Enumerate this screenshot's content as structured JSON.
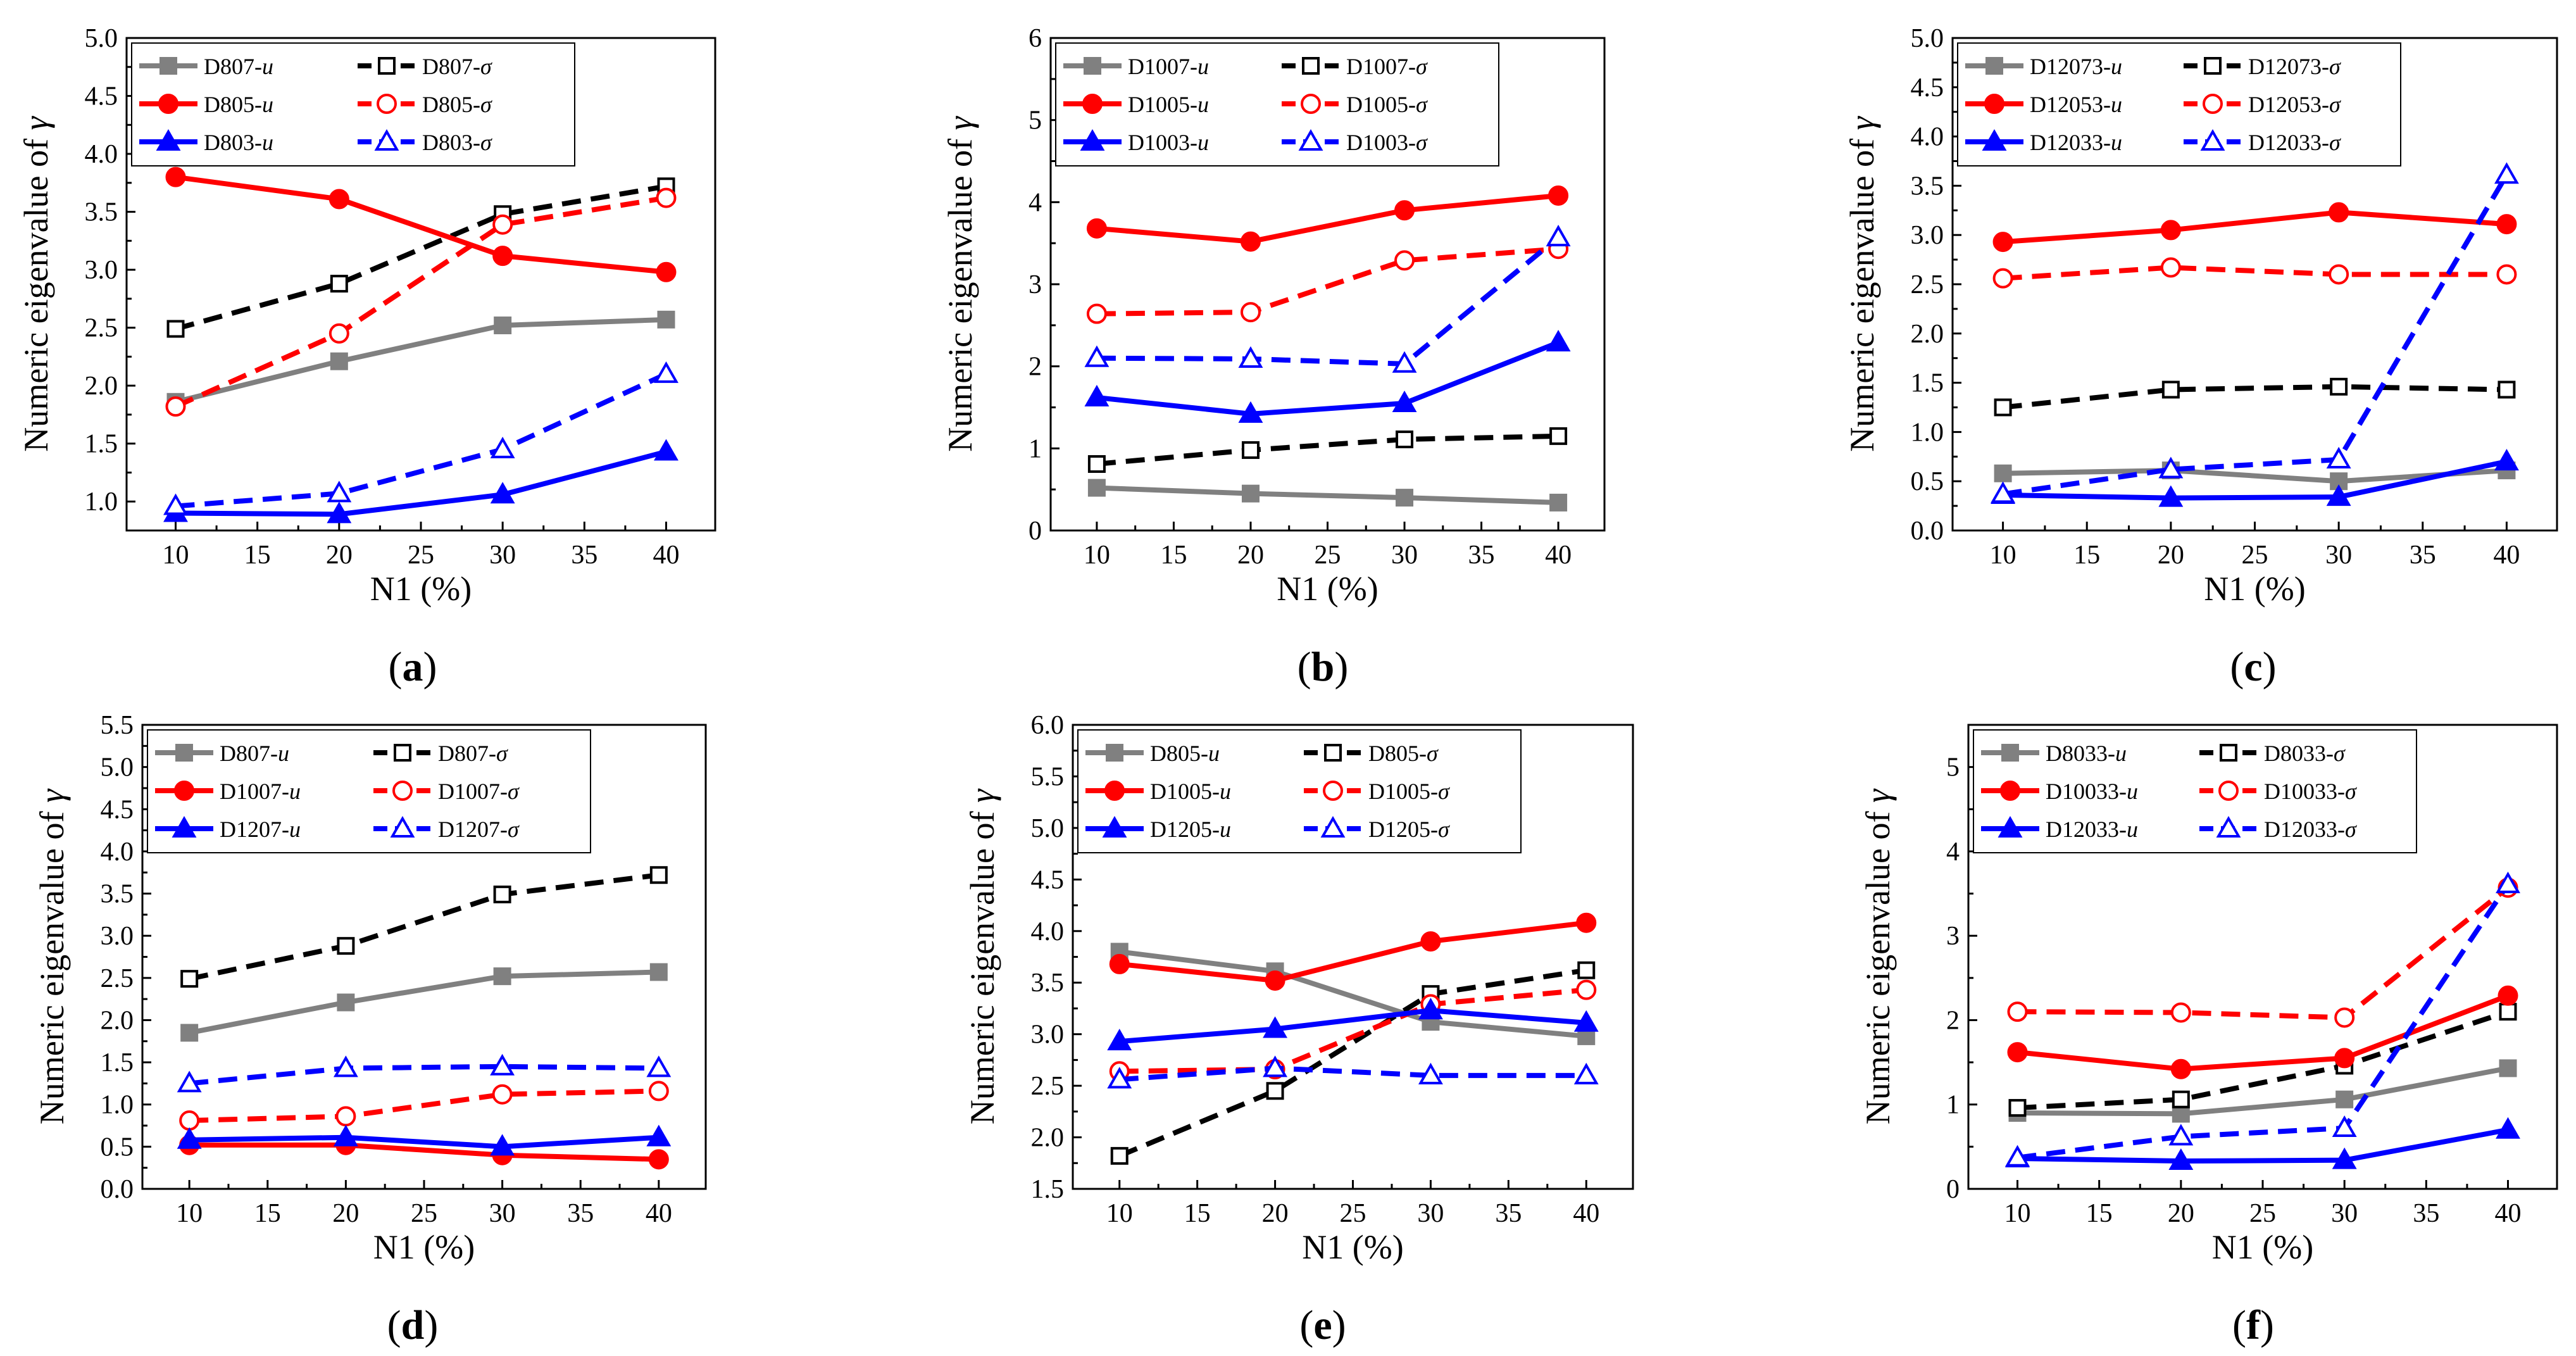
{
  "colors": {
    "gray": "#808080",
    "red": "#ff0000",
    "blue": "#0000ff",
    "black": "#000000"
  },
  "chart_data": [
    {
      "type": "line",
      "panel_label": "(a)",
      "xlabel": "N1 (%)",
      "ylabel": "Numeric eigenvalue of γ",
      "xlim": [
        7,
        43
      ],
      "ylim": [
        0.75,
        5.0
      ],
      "xticks": [
        10,
        15,
        20,
        25,
        30,
        35,
        40
      ],
      "yticks": [
        1.0,
        1.5,
        2.0,
        2.5,
        3.0,
        3.5,
        4.0,
        4.5,
        5.0
      ],
      "ytick_labels": [
        "1.0",
        "1.5",
        "2.0",
        "2.5",
        "3.0",
        "3.5",
        "4.0",
        "4.5",
        "5.0"
      ],
      "x": [
        10,
        20,
        30,
        40
      ],
      "series": [
        {
          "name": "D807-u",
          "color": "#808080",
          "style": "solid",
          "marker": "square-filled",
          "values": [
            1.86,
            2.21,
            2.52,
            2.57
          ]
        },
        {
          "name": "D807-σ",
          "color": "#000000",
          "style": "dashed",
          "marker": "square-open",
          "values": [
            2.49,
            2.88,
            3.48,
            3.72
          ]
        },
        {
          "name": "D805-u",
          "color": "#ff0000",
          "style": "solid",
          "marker": "circle-filled",
          "values": [
            3.8,
            3.61,
            3.12,
            2.98
          ]
        },
        {
          "name": "D805-σ",
          "color": "#ff0000",
          "style": "dashed",
          "marker": "circle-open",
          "values": [
            1.82,
            2.45,
            3.39,
            3.62
          ]
        },
        {
          "name": "D803-u",
          "color": "#0000ff",
          "style": "solid",
          "marker": "triangle-filled",
          "values": [
            0.9,
            0.89,
            1.06,
            1.43
          ]
        },
        {
          "name": "D803-σ",
          "color": "#0000ff",
          "style": "dashed",
          "marker": "triangle-open",
          "values": [
            0.96,
            1.07,
            1.45,
            2.1
          ]
        }
      ],
      "legend": [
        [
          "D807-u",
          "D807-σ"
        ],
        [
          "D805-u",
          "D805-σ"
        ],
        [
          "D803-u",
          "D803-σ"
        ]
      ]
    },
    {
      "type": "line",
      "panel_label": "(b)",
      "xlabel": "N1 (%)",
      "ylabel": "Numeric eigenvalue of γ",
      "xlim": [
        7,
        43
      ],
      "ylim": [
        0,
        6
      ],
      "xticks": [
        10,
        15,
        20,
        25,
        30,
        35,
        40
      ],
      "yticks": [
        0,
        1,
        2,
        3,
        4,
        5,
        6
      ],
      "ytick_labels": [
        "0",
        "1",
        "2",
        "3",
        "4",
        "5",
        "6"
      ],
      "x": [
        10,
        20,
        30,
        40
      ],
      "series": [
        {
          "name": "D1007-u",
          "color": "#808080",
          "style": "solid",
          "marker": "square-filled",
          "values": [
            0.52,
            0.45,
            0.4,
            0.34
          ]
        },
        {
          "name": "D1007-σ",
          "color": "#000000",
          "style": "dashed",
          "marker": "square-open",
          "values": [
            0.81,
            0.98,
            1.11,
            1.15
          ]
        },
        {
          "name": "D1005-u",
          "color": "#ff0000",
          "style": "solid",
          "marker": "circle-filled",
          "values": [
            3.68,
            3.52,
            3.9,
            4.08
          ]
        },
        {
          "name": "D1005-σ",
          "color": "#ff0000",
          "style": "dashed",
          "marker": "circle-open",
          "values": [
            2.64,
            2.66,
            3.29,
            3.43
          ]
        },
        {
          "name": "D1003-u",
          "color": "#0000ff",
          "style": "solid",
          "marker": "triangle-filled",
          "values": [
            1.62,
            1.42,
            1.55,
            2.29
          ]
        },
        {
          "name": "D1003-σ",
          "color": "#0000ff",
          "style": "dashed",
          "marker": "triangle-open",
          "values": [
            2.1,
            2.09,
            2.03,
            3.57
          ]
        }
      ],
      "legend": [
        [
          "D1007-u",
          "D1007-σ"
        ],
        [
          "D1005-u",
          "D1005-σ"
        ],
        [
          "D1003-u",
          "D1003-σ"
        ]
      ]
    },
    {
      "type": "line",
      "panel_label": "(c)",
      "xlabel": "N1 (%)",
      "ylabel": "Numeric eigenvalue of γ",
      "xlim": [
        7,
        43
      ],
      "ylim": [
        0,
        5.0
      ],
      "xticks": [
        10,
        15,
        20,
        25,
        30,
        35,
        40
      ],
      "yticks": [
        0,
        0.5,
        1.0,
        1.5,
        2.0,
        2.5,
        3.0,
        3.5,
        4.0,
        4.5,
        5.0
      ],
      "ytick_labels": [
        "0.0",
        "0.5",
        "1.0",
        "1.5",
        "2.0",
        "2.5",
        "3.0",
        "3.5",
        "4.0",
        "4.5",
        "5.0"
      ],
      "x": [
        10,
        20,
        30,
        40
      ],
      "series": [
        {
          "name": "D12073-u",
          "color": "#808080",
          "style": "solid",
          "marker": "square-filled",
          "values": [
            0.58,
            0.61,
            0.5,
            0.61
          ]
        },
        {
          "name": "D12073-σ",
          "color": "#000000",
          "style": "dashed",
          "marker": "square-open",
          "values": [
            1.25,
            1.43,
            1.46,
            1.43
          ]
        },
        {
          "name": "D12053-u",
          "color": "#ff0000",
          "style": "solid",
          "marker": "circle-filled",
          "values": [
            2.93,
            3.05,
            3.23,
            3.11
          ]
        },
        {
          "name": "D12053-σ",
          "color": "#ff0000",
          "style": "dashed",
          "marker": "circle-open",
          "values": [
            2.56,
            2.67,
            2.6,
            2.6
          ]
        },
        {
          "name": "D12033-u",
          "color": "#0000ff",
          "style": "solid",
          "marker": "triangle-filled",
          "values": [
            0.36,
            0.33,
            0.34,
            0.7
          ]
        },
        {
          "name": "D12033-σ",
          "color": "#0000ff",
          "style": "dashed",
          "marker": "triangle-open",
          "values": [
            0.37,
            0.62,
            0.72,
            3.61
          ]
        }
      ],
      "legend": [
        [
          "D12073-u",
          "D12073-σ"
        ],
        [
          "D12053-u",
          "D12053-σ"
        ],
        [
          "D12033-u",
          "D12033-σ"
        ]
      ]
    },
    {
      "type": "line",
      "panel_label": "(d)",
      "xlabel": "N1 (%)",
      "ylabel": "Numeric eigenvalue of γ",
      "xlim": [
        7,
        43
      ],
      "ylim": [
        0,
        5.5
      ],
      "xticks": [
        10,
        15,
        20,
        25,
        30,
        35,
        40
      ],
      "yticks": [
        0,
        0.5,
        1.0,
        1.5,
        2.0,
        2.5,
        3.0,
        3.5,
        4.0,
        4.5,
        5.0,
        5.5
      ],
      "ytick_labels": [
        "0.0",
        "0.5",
        "1.0",
        "1.5",
        "2.0",
        "2.5",
        "3.0",
        "3.5",
        "4.0",
        "4.5",
        "5.0",
        "5.5"
      ],
      "x": [
        10,
        20,
        30,
        40
      ],
      "series": [
        {
          "name": "D807-u",
          "color": "#808080",
          "style": "solid",
          "marker": "square-filled",
          "values": [
            1.85,
            2.21,
            2.52,
            2.57
          ]
        },
        {
          "name": "D807-σ",
          "color": "#000000",
          "style": "dashed",
          "marker": "square-open",
          "values": [
            2.49,
            2.88,
            3.49,
            3.72
          ]
        },
        {
          "name": "D1007-u",
          "color": "#ff0000",
          "style": "solid",
          "marker": "circle-filled",
          "values": [
            0.52,
            0.52,
            0.4,
            0.35
          ]
        },
        {
          "name": "D1007-σ",
          "color": "#ff0000",
          "style": "dashed",
          "marker": "circle-open",
          "values": [
            0.81,
            0.86,
            1.12,
            1.16
          ]
        },
        {
          "name": "D1207-u",
          "color": "#0000ff",
          "style": "solid",
          "marker": "triangle-filled",
          "values": [
            0.58,
            0.61,
            0.5,
            0.61
          ]
        },
        {
          "name": "D1207-σ",
          "color": "#0000ff",
          "style": "dashed",
          "marker": "triangle-open",
          "values": [
            1.25,
            1.43,
            1.45,
            1.43
          ]
        }
      ],
      "legend": [
        [
          "D807-u",
          "D807-σ"
        ],
        [
          "D1007-u",
          "D1007-σ"
        ],
        [
          "D1207-u",
          "D1207-σ"
        ]
      ]
    },
    {
      "type": "line",
      "panel_label": "(e)",
      "xlabel": "N1 (%)",
      "ylabel": "Numeric eigenvalue of γ",
      "xlim": [
        7,
        43
      ],
      "ylim": [
        1.5,
        6.0
      ],
      "xticks": [
        10,
        15,
        20,
        25,
        30,
        35,
        40
      ],
      "yticks": [
        1.5,
        2.0,
        2.5,
        3.0,
        3.5,
        4.0,
        4.5,
        5.0,
        5.5,
        6.0
      ],
      "ytick_labels": [
        "1.5",
        "2.0",
        "2.5",
        "3.0",
        "3.5",
        "4.0",
        "4.5",
        "5.0",
        "5.5",
        "6.0"
      ],
      "x": [
        10,
        20,
        30,
        40
      ],
      "series": [
        {
          "name": "D805-u",
          "color": "#808080",
          "style": "solid",
          "marker": "square-filled",
          "values": [
            3.8,
            3.61,
            3.12,
            2.98
          ]
        },
        {
          "name": "D805-σ",
          "color": "#000000",
          "style": "dashed",
          "marker": "square-open",
          "values": [
            1.82,
            2.45,
            3.39,
            3.62
          ]
        },
        {
          "name": "D1005-u",
          "color": "#ff0000",
          "style": "solid",
          "marker": "circle-filled",
          "values": [
            3.68,
            3.52,
            3.9,
            4.08
          ]
        },
        {
          "name": "D1005-σ",
          "color": "#ff0000",
          "style": "dashed",
          "marker": "circle-open",
          "values": [
            2.64,
            2.66,
            3.29,
            3.43
          ]
        },
        {
          "name": "D1205-u",
          "color": "#0000ff",
          "style": "solid",
          "marker": "triangle-filled",
          "values": [
            2.93,
            3.05,
            3.23,
            3.11
          ]
        },
        {
          "name": "D1205-σ",
          "color": "#0000ff",
          "style": "dashed",
          "marker": "triangle-open",
          "values": [
            2.56,
            2.67,
            2.6,
            2.6
          ]
        }
      ],
      "legend": [
        [
          "D805-u",
          "D805-σ"
        ],
        [
          "D1005-u",
          "D1005-σ"
        ],
        [
          "D1205-u",
          "D1205-σ"
        ]
      ]
    },
    {
      "type": "line",
      "panel_label": "(f)",
      "xlabel": "N1 (%)",
      "ylabel": "Numeric eigenvalue of γ",
      "xlim": [
        7,
        43
      ],
      "ylim": [
        0,
        5.5
      ],
      "xticks": [
        10,
        15,
        20,
        25,
        30,
        35,
        40
      ],
      "yticks": [
        0,
        1,
        2,
        3,
        4,
        5
      ],
      "ytick_labels": [
        "0",
        "1",
        "2",
        "3",
        "4",
        "5"
      ],
      "x": [
        10,
        20,
        30,
        40
      ],
      "series": [
        {
          "name": "D8033-u",
          "color": "#808080",
          "style": "solid",
          "marker": "square-filled",
          "values": [
            0.9,
            0.89,
            1.06,
            1.43
          ]
        },
        {
          "name": "D8033-σ",
          "color": "#000000",
          "style": "dashed",
          "marker": "square-open",
          "values": [
            0.96,
            1.06,
            1.46,
            2.1
          ]
        },
        {
          "name": "D10033-u",
          "color": "#ff0000",
          "style": "solid",
          "marker": "circle-filled",
          "values": [
            1.62,
            1.42,
            1.55,
            2.29
          ]
        },
        {
          "name": "D10033-σ",
          "color": "#ff0000",
          "style": "dashed",
          "marker": "circle-open",
          "values": [
            2.1,
            2.09,
            2.03,
            3.57
          ]
        },
        {
          "name": "D12033-u",
          "color": "#0000ff",
          "style": "solid",
          "marker": "triangle-filled",
          "values": [
            0.36,
            0.33,
            0.34,
            0.7
          ]
        },
        {
          "name": "D12033-σ",
          "color": "#0000ff",
          "style": "dashed",
          "marker": "triangle-open",
          "values": [
            0.37,
            0.62,
            0.72,
            3.61
          ]
        }
      ],
      "legend": [
        [
          "D8033-u",
          "D8033-σ"
        ],
        [
          "D10033-u",
          "D10033-σ"
        ],
        [
          "D12033-u",
          "D12033-σ"
        ]
      ]
    }
  ]
}
